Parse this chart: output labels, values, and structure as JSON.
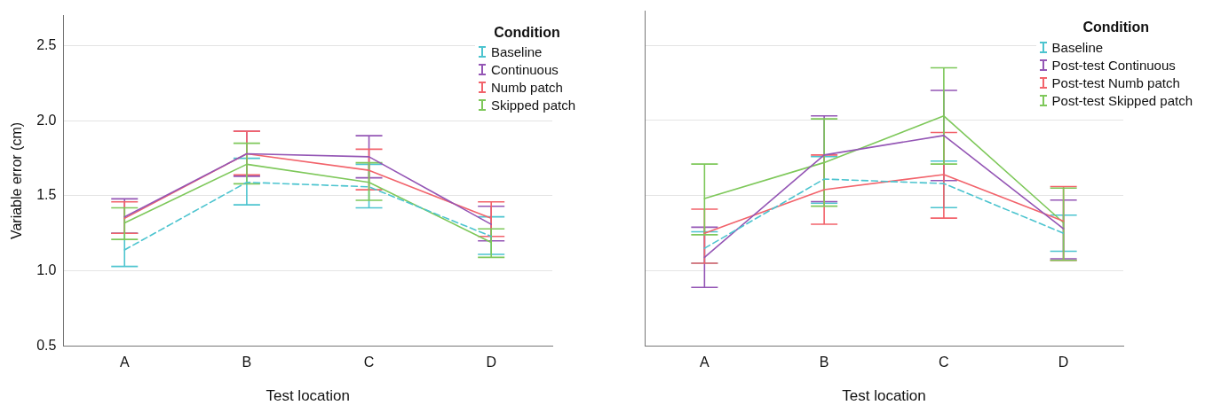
{
  "chart_data": [
    {
      "type": "line",
      "xlabel": "Test location",
      "ylabel": "Variable error (cm)",
      "legend_title": "Condition",
      "legend": "top right",
      "grid": "y",
      "marker": "none",
      "categories": [
        "A",
        "B",
        "C",
        "D"
      ],
      "ylim": [
        0.5,
        2.7
      ],
      "yticks": [
        0.5,
        {
          "value": 1,
          "label": "1.0"
        },
        1.5,
        {
          "value": 2,
          "label": "2.0"
        },
        2.5
      ],
      "series": [
        {
          "name": "Baseline",
          "color": "#4cc4cf",
          "line_style": "dashed",
          "values": [
            1.14,
            1.59,
            1.56,
            1.23
          ],
          "errors": [
            [
              1.03,
              1.25
            ],
            [
              1.44,
              1.75
            ],
            [
              1.42,
              1.71
            ],
            [
              1.11,
              1.36
            ]
          ]
        },
        {
          "name": "Continuous",
          "color": "#9456b5",
          "values": [
            1.36,
            1.78,
            1.76,
            1.31
          ],
          "errors": [
            [
              1.25,
              1.48
            ],
            [
              1.63,
              1.93
            ],
            [
              1.62,
              1.9
            ],
            [
              1.2,
              1.43
            ]
          ]
        },
        {
          "name": "Numb patch",
          "color": "#f2636b",
          "values": [
            1.35,
            1.78,
            1.67,
            1.35
          ],
          "errors": [
            [
              1.25,
              1.46
            ],
            [
              1.64,
              1.93
            ],
            [
              1.54,
              1.81
            ],
            [
              1.23,
              1.46
            ]
          ]
        },
        {
          "name": "Skipped patch",
          "color": "#7ec85a",
          "values": [
            1.32,
            1.71,
            1.59,
            1.19
          ],
          "errors": [
            [
              1.21,
              1.42
            ],
            [
              1.58,
              1.85
            ],
            [
              1.47,
              1.72
            ],
            [
              1.09,
              1.28
            ]
          ]
        }
      ]
    },
    {
      "type": "line",
      "xlabel": "Test location",
      "legend_title": "Condition",
      "legend": "top right",
      "grid": "y",
      "marker": "none",
      "tick_labels": "x",
      "categories": [
        "A",
        "B",
        "C",
        "D"
      ],
      "ylim": [
        0.5,
        2.73
      ],
      "yticks": [
        0.5,
        1,
        1.5,
        2,
        2.5
      ],
      "series": [
        {
          "name": "Baseline",
          "color": "#4cc4cf",
          "line_style": "dashed",
          "values": [
            1.15,
            1.61,
            1.58,
            1.25
          ],
          "errors": [
            [
              1.05,
              1.26
            ],
            [
              1.45,
              1.76
            ],
            [
              1.42,
              1.73
            ],
            [
              1.13,
              1.37
            ]
          ]
        },
        {
          "name": "Post-test Continuous",
          "color": "#9456b5",
          "values": [
            1.09,
            1.77,
            1.9,
            1.28
          ],
          "errors": [
            [
              0.89,
              1.29
            ],
            [
              1.46,
              2.03
            ],
            [
              1.6,
              2.2
            ],
            [
              1.08,
              1.47
            ]
          ]
        },
        {
          "name": "Post-test Numb patch",
          "color": "#f2636b",
          "values": [
            1.25,
            1.54,
            1.64,
            1.33
          ],
          "errors": [
            [
              1.05,
              1.41
            ],
            [
              1.31,
              1.77
            ],
            [
              1.35,
              1.92
            ],
            [
              1.07,
              1.56
            ]
          ]
        },
        {
          "name": "Post-test Skipped patch",
          "color": "#7ec85a",
          "values": [
            1.48,
            1.72,
            2.03,
            1.32
          ],
          "errors": [
            [
              1.24,
              1.71
            ],
            [
              1.43,
              2.01
            ],
            [
              1.71,
              2.35
            ],
            [
              1.07,
              1.55
            ]
          ]
        }
      ]
    }
  ]
}
